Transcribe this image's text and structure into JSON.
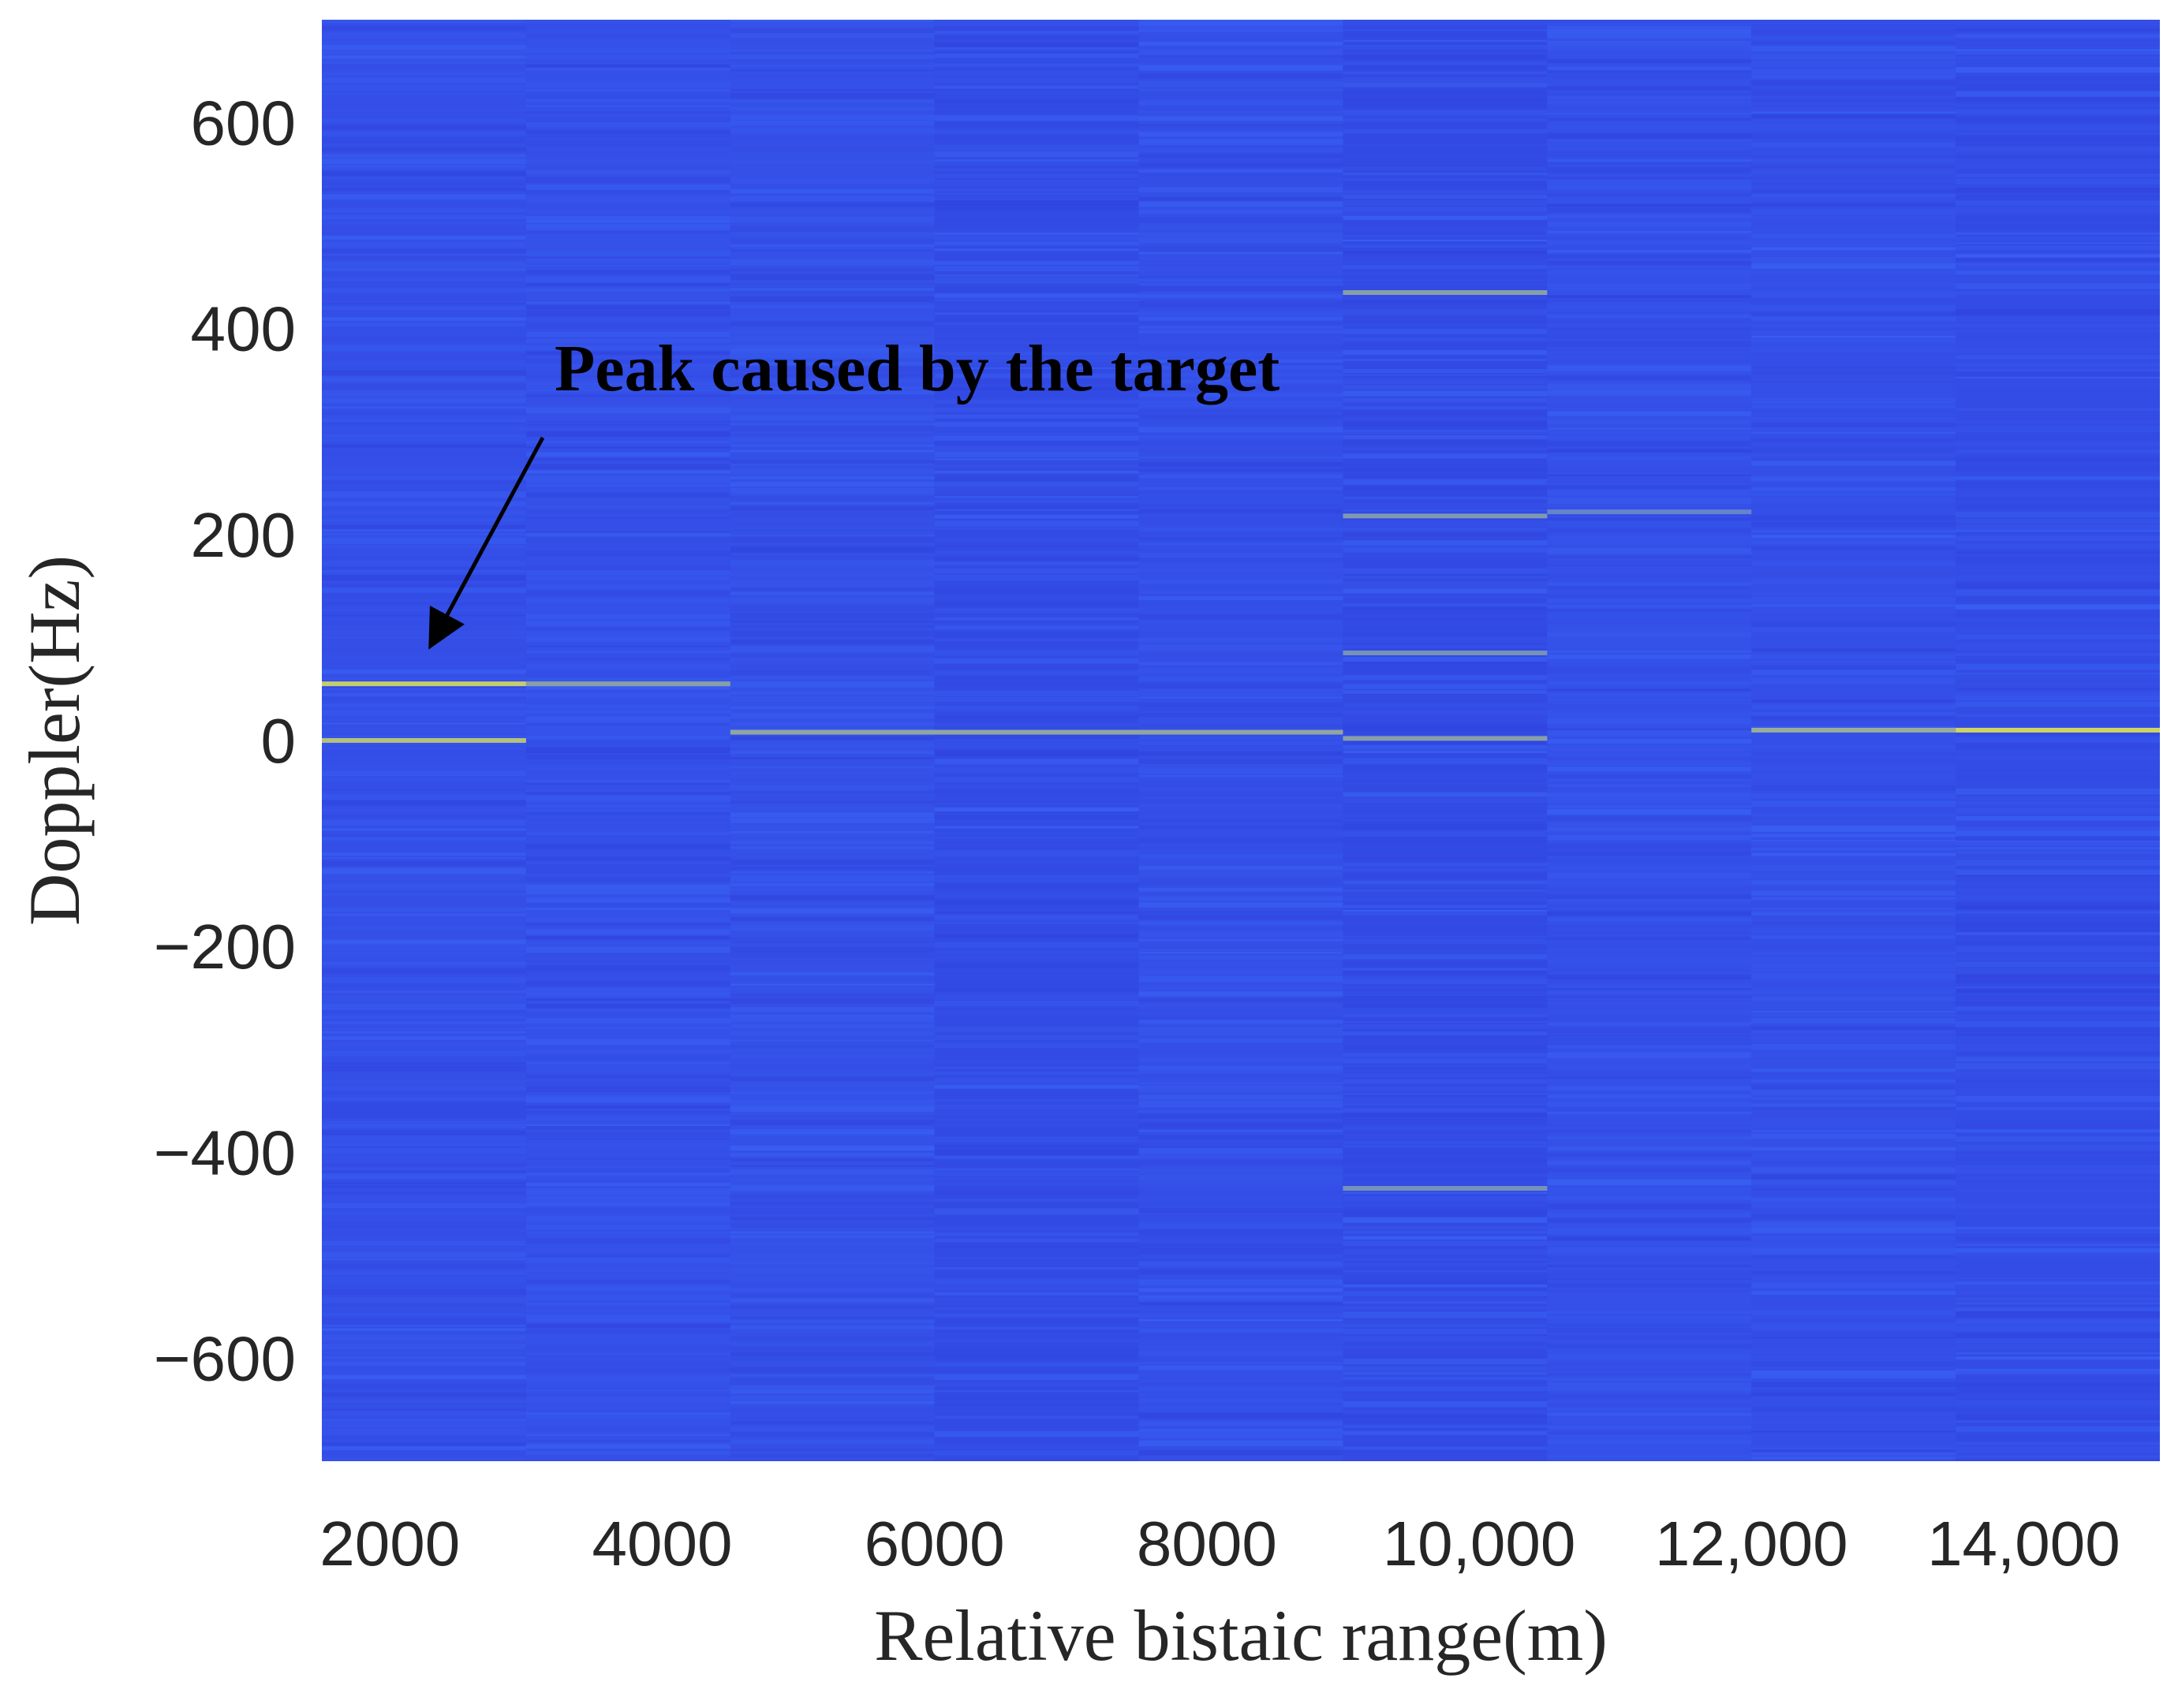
{
  "chart_data": {
    "type": "heatmap",
    "title": "",
    "xlabel": "Relative bistaic range(m)",
    "ylabel": "Doppler(Hz)",
    "xlim": [
      1500,
      15000
    ],
    "ylim": [
      -700,
      700
    ],
    "x_ticks": [
      2000,
      4000,
      6000,
      8000,
      10000,
      12000,
      14000
    ],
    "x_tick_labels": [
      "2000",
      "4000",
      "6000",
      "8000",
      "10,000",
      "12,000",
      "14,000"
    ],
    "y_ticks": [
      600,
      400,
      200,
      0,
      -200,
      -400,
      -600
    ],
    "y_tick_labels": [
      "600",
      "400",
      "200",
      "0",
      "−200",
      "−400",
      "−600"
    ],
    "range_segments": [
      {
        "x0": 1500,
        "x1": 3000
      },
      {
        "x0": 3000,
        "x1": 4500
      },
      {
        "x0": 4500,
        "x1": 6000
      },
      {
        "x0": 6000,
        "x1": 7500
      },
      {
        "x0": 7500,
        "x1": 9000
      },
      {
        "x0": 9000,
        "x1": 10500
      },
      {
        "x0": 10500,
        "x1": 12000
      },
      {
        "x0": 12000,
        "x1": 13500
      },
      {
        "x0": 13500,
        "x1": 15000
      }
    ],
    "peaks": [
      {
        "x0": 1500,
        "x1": 3000,
        "doppler": 55,
        "intensity": 0.8
      },
      {
        "x0": 1500,
        "x1": 3000,
        "doppler": 0,
        "intensity": 0.7
      },
      {
        "x0": 3000,
        "x1": 4500,
        "doppler": 55,
        "intensity": 0.45
      },
      {
        "x0": 4500,
        "x1": 9000,
        "doppler": 8,
        "intensity": 0.5
      },
      {
        "x0": 9000,
        "x1": 10500,
        "doppler": 2,
        "intensity": 0.45
      },
      {
        "x0": 9000,
        "x1": 10500,
        "doppler": 435,
        "intensity": 0.45
      },
      {
        "x0": 9000,
        "x1": 10500,
        "doppler": 218,
        "intensity": 0.4
      },
      {
        "x0": 9000,
        "x1": 10500,
        "doppler": 85,
        "intensity": 0.35
      },
      {
        "x0": 9000,
        "x1": 10500,
        "doppler": -435,
        "intensity": 0.35
      },
      {
        "x0": 10500,
        "x1": 12000,
        "doppler": 222,
        "intensity": 0.25
      },
      {
        "x0": 12000,
        "x1": 13500,
        "doppler": 10,
        "intensity": 0.55
      },
      {
        "x0": 13500,
        "x1": 15000,
        "doppler": 10,
        "intensity": 0.85
      }
    ],
    "colormap": {
      "low": "#2a2fd0",
      "mid": "#3a63f5",
      "high": "#e8e84a"
    },
    "grid": false,
    "annotations": [
      {
        "text": "Peak caused by the target",
        "arrow_target_x": 2300,
        "arrow_target_y": 90
      }
    ]
  }
}
